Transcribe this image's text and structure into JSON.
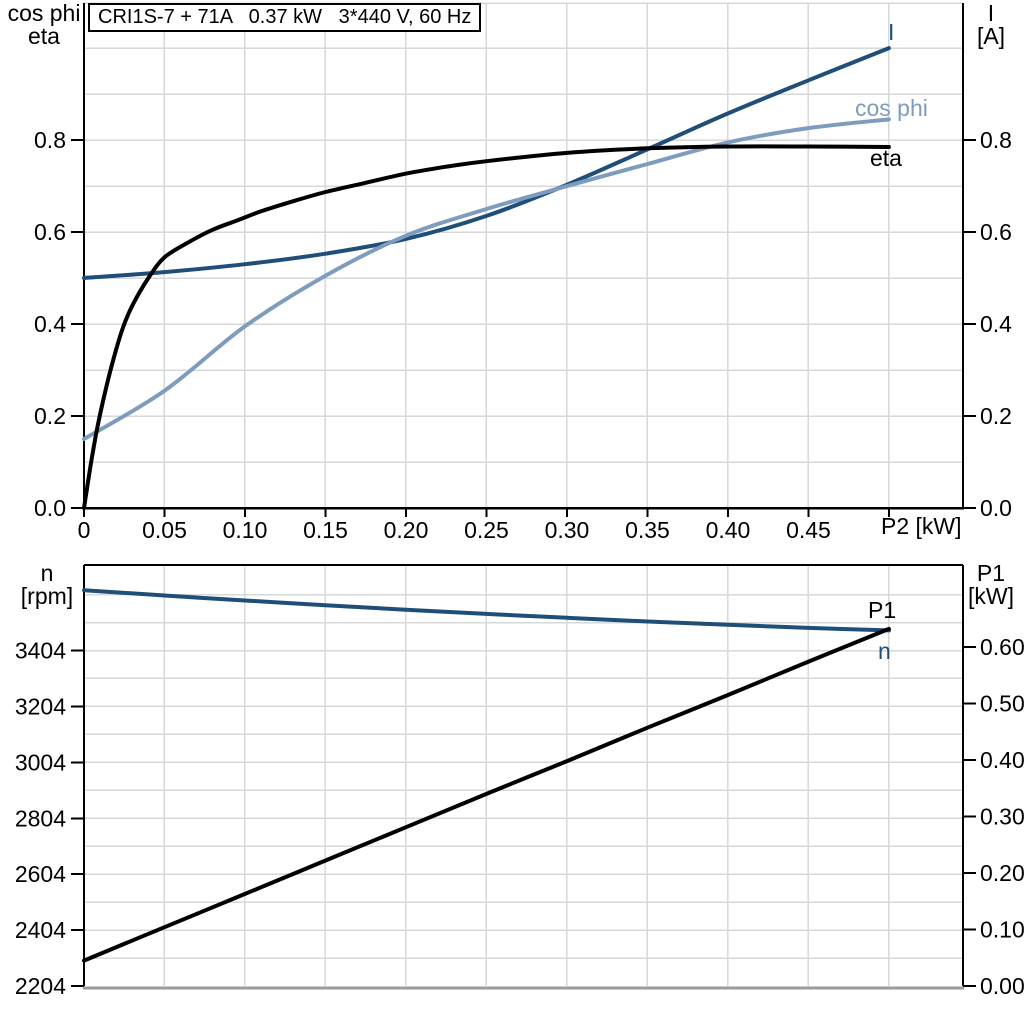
{
  "title_box": {
    "text": "CRI1S-7 + 71A   0.37 kW   3*440 V, 60 Hz"
  },
  "axis_labels": {
    "top_left_line1": "cos phi",
    "top_left_line2": "eta",
    "top_right_line1": "I",
    "top_right_line2": "[A]",
    "x_axis": "P2 [kW]",
    "bottom_left_line1": "n",
    "bottom_left_line2": "[rpm]",
    "bottom_right_line1": "P1",
    "bottom_right_line2": "[kW]"
  },
  "curve_labels": {
    "current": "I",
    "cos_phi": "cos phi",
    "eta": "eta",
    "p1": "P1",
    "n": "n"
  },
  "colors": {
    "navy": "#1f4e79",
    "steel": "#7e9cbd",
    "black": "#000000",
    "grid": "#d6d8da",
    "frame": "#000000",
    "bottom_frame_gray": "#9b9b9b",
    "background": "#ffffff"
  },
  "chart_data": [
    {
      "type": "line",
      "title": "CRI1S-7 + 71A   0.37 kW   3*440 V, 60 Hz",
      "xlabel": "P2 [kW]",
      "ylabel_left": "cos phi / eta",
      "ylabel_right": "I [A]",
      "xlim": [
        0,
        0.546
      ],
      "ylim": [
        0,
        1.098
      ],
      "grid": {
        "x_step": 0.05,
        "y_step": 0.1,
        "on": true
      },
      "legend_position": "inline-curve-labels",
      "x_ticks": {
        "values": [
          0,
          0.05,
          0.1,
          0.15,
          0.2,
          0.25,
          0.3,
          0.35,
          0.4,
          0.45,
          0.5
        ],
        "labels": [
          "0",
          "0.05",
          "0.10",
          "0.15",
          "0.20",
          "0.25",
          "0.30",
          "0.35",
          "0.40",
          "0.45",
          ""
        ]
      },
      "y_ticks_left": {
        "values": [
          0.0,
          0.2,
          0.4,
          0.6,
          0.8
        ],
        "labels": [
          "0.0",
          "0.2",
          "0.4",
          "0.6",
          "0.8"
        ]
      },
      "y_ticks_right": {
        "values": [
          0.0,
          0.2,
          0.4,
          0.6,
          0.8
        ],
        "labels": [
          "0.0",
          "0.2",
          "0.4",
          "0.6",
          "0.8"
        ]
      },
      "series": [
        {
          "name": "I",
          "axis": "left",
          "color_key": "navy",
          "x": [
            0,
            0.05,
            0.1,
            0.15,
            0.2,
            0.25,
            0.3,
            0.35,
            0.4,
            0.45,
            0.5
          ],
          "y": [
            0.5,
            0.513,
            0.53,
            0.553,
            0.585,
            0.635,
            0.703,
            0.78,
            0.858,
            0.93,
            1.0
          ]
        },
        {
          "name": "cos phi",
          "axis": "left",
          "color_key": "steel",
          "x": [
            0,
            0.05,
            0.1,
            0.15,
            0.2,
            0.25,
            0.3,
            0.35,
            0.4,
            0.45,
            0.5
          ],
          "y": [
            0.15,
            0.255,
            0.395,
            0.505,
            0.592,
            0.65,
            0.7,
            0.748,
            0.795,
            0.826,
            0.845
          ]
        },
        {
          "name": "eta",
          "axis": "left",
          "color_key": "black",
          "x": [
            0,
            0.004,
            0.008,
            0.013,
            0.018,
            0.024,
            0.03,
            0.04,
            0.05,
            0.065,
            0.08,
            0.095,
            0.11,
            0.13,
            0.15,
            0.175,
            0.2,
            0.225,
            0.25,
            0.3,
            0.35,
            0.4,
            0.45,
            0.5
          ],
          "y": [
            0,
            0.09,
            0.17,
            0.25,
            0.32,
            0.39,
            0.44,
            0.5,
            0.545,
            0.578,
            0.605,
            0.625,
            0.645,
            0.667,
            0.687,
            0.707,
            0.727,
            0.742,
            0.754,
            0.772,
            0.782,
            0.786,
            0.786,
            0.785
          ]
        }
      ]
    },
    {
      "type": "line",
      "title": "",
      "ylabel_left": "n [rpm]",
      "ylabel_right": "P1 [kW]",
      "xlim": [
        0,
        0.546
      ],
      "ylim_left": [
        2204,
        3710
      ],
      "ylim_right": [
        0,
        0.745
      ],
      "grid": {
        "x_step": 0.05,
        "y_step_left": 100,
        "on": true
      },
      "legend_position": "inline-curve-labels",
      "y_ticks_left": {
        "values": [
          3404,
          3204,
          3004,
          2804,
          2604,
          2404,
          2204
        ],
        "labels": [
          "3404",
          "3204",
          "3004",
          "2804",
          "2604",
          "2404",
          "2204"
        ]
      },
      "y_ticks_right": {
        "values": [
          0.6,
          0.5,
          0.4,
          0.3,
          0.2,
          0.1,
          0.0
        ],
        "labels": [
          "0.60",
          "0.50",
          "0.40",
          "0.30",
          "0.20",
          "0.10",
          "0.00"
        ]
      },
      "series": [
        {
          "name": "n",
          "axis": "left",
          "color_key": "navy",
          "x": [
            0,
            0.05,
            0.1,
            0.15,
            0.2,
            0.25,
            0.3,
            0.35,
            0.4,
            0.45,
            0.5
          ],
          "y": [
            3620,
            3601,
            3583,
            3566,
            3550,
            3535,
            3521,
            3508,
            3496,
            3485,
            3476
          ]
        },
        {
          "name": "P1",
          "axis": "right",
          "color_key": "black",
          "x": [
            0,
            0.05,
            0.1,
            0.15,
            0.2,
            0.25,
            0.3,
            0.35,
            0.4,
            0.45,
            0.5
          ],
          "y": [
            0.045,
            0.104,
            0.163,
            0.222,
            0.281,
            0.34,
            0.398,
            0.457,
            0.515,
            0.574,
            0.632
          ]
        }
      ]
    }
  ]
}
